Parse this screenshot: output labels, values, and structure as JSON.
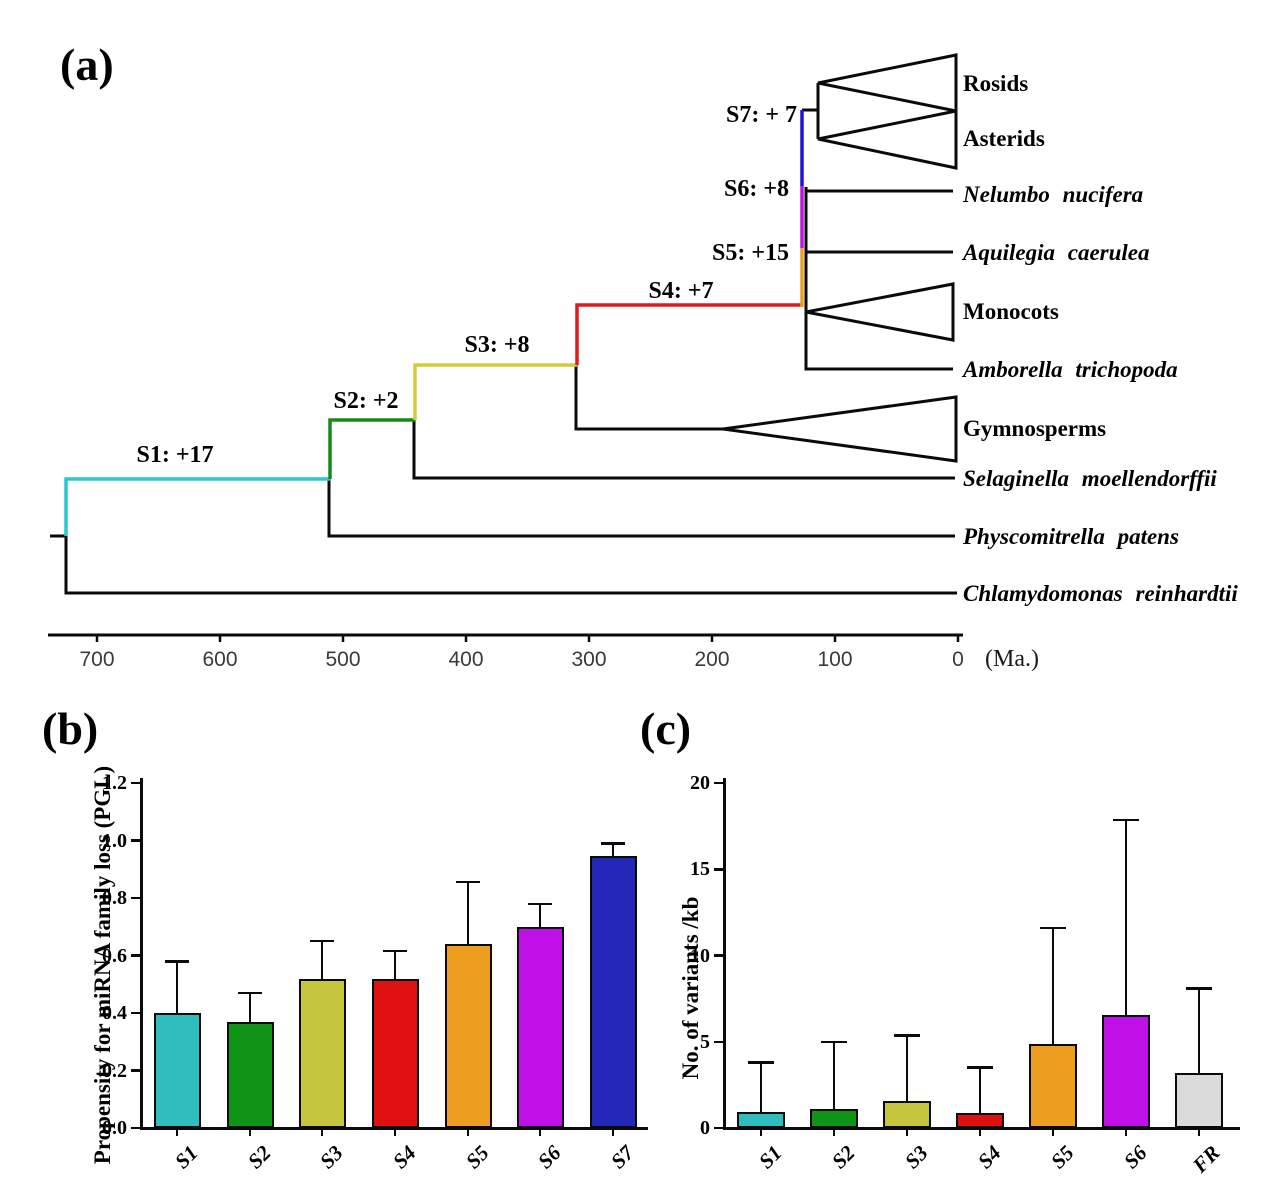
{
  "panels": {
    "a_label": "(a)",
    "b_label": "(b)",
    "c_label": "(c)"
  },
  "tree": {
    "branches": [
      {
        "id": "S1",
        "label": "S1: +17",
        "color": "#2bc7cc"
      },
      {
        "id": "S2",
        "label": "S2: +2",
        "color": "#168a16"
      },
      {
        "id": "S3",
        "label": "S3: +8",
        "color": "#d4cc38"
      },
      {
        "id": "S4",
        "label": "S4: +7",
        "color": "#de1b1b"
      },
      {
        "id": "S5",
        "label": "S5: +15",
        "color": "#ec9f25"
      },
      {
        "id": "S6",
        "label": "S6: +8",
        "color": "#bd17dc"
      },
      {
        "id": "S7",
        "label": "S7: + 7",
        "color": "#2015d6"
      }
    ],
    "taxa": [
      {
        "name": "Rosids",
        "italic": false,
        "collapsed_clade": true
      },
      {
        "name": "Asterids",
        "italic": false,
        "collapsed_clade": true
      },
      {
        "name": "Nelumbo nucifera",
        "italic": true,
        "collapsed_clade": false
      },
      {
        "name": "Aquilegia caerulea",
        "italic": true,
        "collapsed_clade": false
      },
      {
        "name": "Monocots",
        "italic": false,
        "collapsed_clade": true
      },
      {
        "name": "Amborella trichopoda",
        "italic": true,
        "collapsed_clade": false
      },
      {
        "name": "Gymnosperms",
        "italic": false,
        "collapsed_clade": true
      },
      {
        "name": "Selaginella moellendorffii",
        "italic": true,
        "collapsed_clade": false
      },
      {
        "name": "Physcomitrella patens",
        "italic": true,
        "collapsed_clade": false
      },
      {
        "name": "Chlamydomonas reinhardtii",
        "italic": true,
        "collapsed_clade": false
      }
    ],
    "time_axis": {
      "tick_labels": [
        "700",
        "600",
        "500",
        "400",
        "300",
        "200",
        "100",
        "0"
      ],
      "unit_label": "(Ma.)"
    }
  },
  "chart_data": [
    {
      "panel": "b",
      "type": "bar",
      "title": "",
      "categories": [
        "S1",
        "S2",
        "S3",
        "S4",
        "S5",
        "S6",
        "S7"
      ],
      "values": [
        0.4,
        0.37,
        0.52,
        0.52,
        0.64,
        0.7,
        0.945
      ],
      "error_bar_tops": [
        0.58,
        0.47,
        0.65,
        0.615,
        0.855,
        0.78,
        0.99
      ],
      "error_bars": "upper only",
      "bar_colors": [
        "#2fbdbd",
        "#0f9415",
        "#c6c53e",
        "#de1010",
        "#ec9e1e",
        "#bf10e8",
        "#2328b8"
      ],
      "xlabel": "",
      "ylabel": "Propensity for miRNA family loss (PGL)",
      "ytick_labels": [
        "0.0",
        "0.2",
        "0.4",
        "0.6",
        "0.8",
        "1.0",
        "1.2"
      ],
      "ylim": [
        0,
        1.2
      ],
      "grid": false,
      "legend": "none"
    },
    {
      "panel": "c",
      "type": "bar",
      "title": "",
      "categories": [
        "S1",
        "S2",
        "S3",
        "S4",
        "S5",
        "S6",
        "FR"
      ],
      "values": [
        0.95,
        1.1,
        1.55,
        0.85,
        4.85,
        6.55,
        3.2
      ],
      "error_bar_tops": [
        3.8,
        5.0,
        5.35,
        3.5,
        11.6,
        17.85,
        8.1
      ],
      "error_bars": "upper only",
      "bar_colors": [
        "#2fbdbd",
        "#0f9415",
        "#c6c53e",
        "#de1010",
        "#ec9e1e",
        "#bf10e8",
        "#dbdbdb"
      ],
      "xlabel": "",
      "ylabel": "No. of variants /kb",
      "ytick_labels": [
        "0",
        "5",
        "10",
        "15",
        "20"
      ],
      "ylim": [
        0,
        20
      ],
      "grid": false,
      "legend": "none"
    }
  ]
}
